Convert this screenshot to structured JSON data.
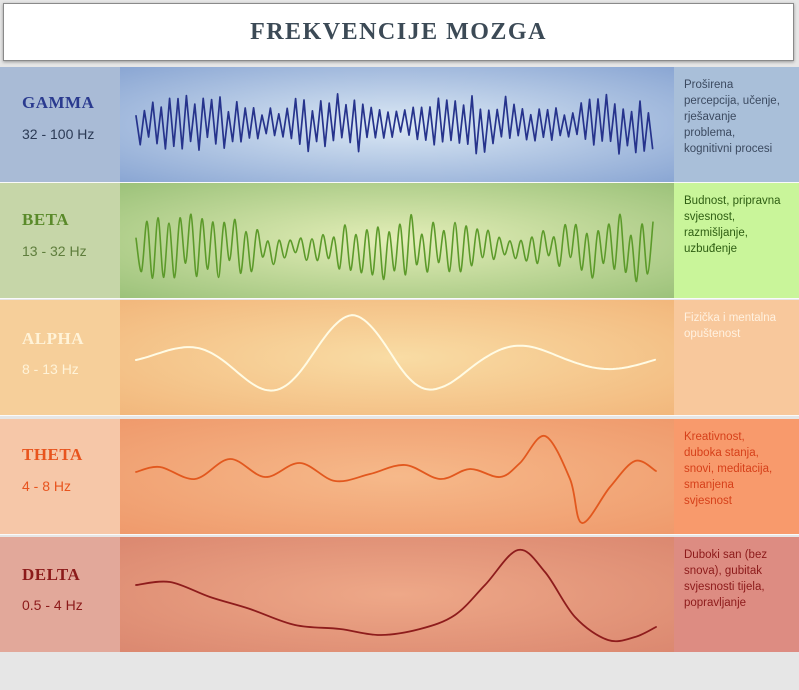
{
  "title": "FREKVENCIJE MOZGA",
  "bands": [
    {
      "id": "gamma",
      "name": "GAMMA",
      "range": "32 - 100 Hz",
      "description": [
        "Proširena",
        "percepcija, učenje,",
        "rješavanje",
        "problema,",
        "kognitivni procesi"
      ],
      "name_color": "#2a3a8f",
      "range_color": "#2b3a55",
      "desc_color": "#3c4a60",
      "wave_color": "#26338c",
      "label_bg": "#a9bbd6",
      "desc_bg": "#a9bfd9",
      "wave_bg_edge": "#8aa6d3",
      "wave_bg_center": "#dce9f5",
      "wave_type": "gamma"
    },
    {
      "id": "beta",
      "name": "BETA",
      "range": "13 - 32 Hz",
      "description": [
        "Budnost, pripravna",
        "svjesnost,",
        "razmišljanje,",
        "uzbuđenje"
      ],
      "name_color": "#5a8a2a",
      "range_color": "#5e7d3c",
      "desc_color": "#2e5e12",
      "wave_color": "#5c9a2a",
      "label_bg": "#c6d6a8",
      "desc_bg": "#c9f59a",
      "wave_bg_edge": "#9cc27a",
      "wave_bg_center": "#e4eeb8",
      "wave_type": "beta"
    },
    {
      "id": "alpha",
      "name": "ALPHA",
      "range": "8 - 13 Hz",
      "description": [
        "Fizička i mentalna",
        "opuštenost"
      ],
      "name_color": "#fff3d8",
      "range_color": "#fff3d8",
      "desc_color": "#fff1e0",
      "wave_color": "#fffbe4",
      "label_bg": "#f6cf9a",
      "desc_bg": "#f8c89c",
      "wave_bg_edge": "#f2b77c",
      "wave_bg_center": "#f9dca4",
      "wave_type": "alpha"
    },
    {
      "id": "theta",
      "name": "THETA",
      "range": "4 - 8 Hz",
      "description": [
        "Kreativnost,",
        "duboka stanja,",
        "snovi, meditacija,",
        "smanjena",
        "svjesnost"
      ],
      "name_color": "#e8541e",
      "range_color": "#e8541e",
      "desc_color": "#d6401a",
      "wave_color": "#e2581e",
      "label_bg": "#f6c7a8",
      "desc_bg": "#f89a6c",
      "wave_bg_edge": "#ef9a6c",
      "wave_bg_center": "#f6b98a",
      "wave_type": "theta"
    },
    {
      "id": "delta",
      "name": "DELTA",
      "range": "0.5 - 4 Hz",
      "description": [
        "Duboki san (bez",
        "snova), gubitak",
        "svjesnosti tijela,",
        "popravljanje"
      ],
      "name_color": "#8c1a1a",
      "range_color": "#8c1a1a",
      "desc_color": "#8c1a1a",
      "wave_color": "#8e1c1c",
      "label_bg": "#e2a89a",
      "desc_bg": "#dd8c82",
      "wave_bg_edge": "#db8870",
      "wave_bg_center": "#eea888",
      "wave_type": "delta"
    }
  ]
}
